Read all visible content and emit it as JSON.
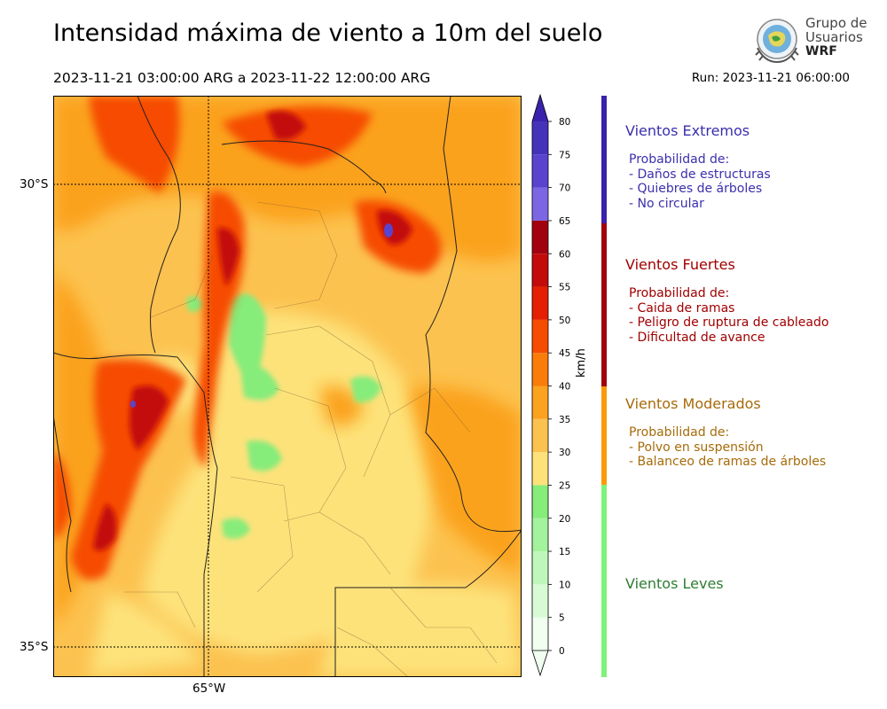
{
  "header": {
    "title": "Intensidad máxima de viento a 10m del suelo",
    "period": "2023-11-21 03:00:00 ARG  a  2023-11-22 12:00:00 ARG",
    "run": "Run: 2023-11-21 06:00:00"
  },
  "logo": {
    "line1": "Grupo de",
    "line2": "Usuarios",
    "line3": "WRF"
  },
  "map": {
    "lat_labels": [
      "30°S",
      "35°S"
    ],
    "lon_labels": [
      "65°W"
    ],
    "region": "Centro de Argentina",
    "field": "Viento máximo a 10 m"
  },
  "colorbar": {
    "unit": "km/h",
    "ticks": [
      "0",
      "5",
      "10",
      "15",
      "20",
      "25",
      "30",
      "35",
      "40",
      "45",
      "50",
      "55",
      "60",
      "65",
      "70",
      "75",
      "80"
    ],
    "colors": [
      "#f0fff0",
      "#d8fbd5",
      "#bff7bb",
      "#a3f29c",
      "#86ec7a",
      "#fde27a",
      "#fcc24f",
      "#fba21f",
      "#fa7c0b",
      "#f64c02",
      "#e41f02",
      "#c30b0a",
      "#a1020e",
      "#7d66e3",
      "#5a44cf",
      "#4532bb",
      "#3a22ad"
    ]
  },
  "categories": [
    {
      "title": "Vientos Extremos",
      "color": "#3b2fae",
      "lines": [
        "Probabilidad de:",
        "- Daños de estructuras",
        "- Quiebres de árboles",
        "- No circular"
      ]
    },
    {
      "title": "Vientos Fuertes",
      "color": "#a00000",
      "lines": [
        "Probabilidad de:",
        "- Caida de ramas",
        "- Peligro de ruptura de cableado",
        "- Dificultad de avance"
      ]
    },
    {
      "title": "Vientos Moderados",
      "color": "#a66b0a",
      "lines": [
        "Probabilidad de:",
        "- Polvo en suspensión",
        "- Balanceo de ramas de árboles"
      ]
    },
    {
      "title": "Vientos Leves",
      "color": "#2e7d32",
      "lines": []
    }
  ],
  "category_bar_colors": [
    "#3a22ad",
    "#a1020e",
    "#fa9a0a",
    "#7ff27a"
  ]
}
